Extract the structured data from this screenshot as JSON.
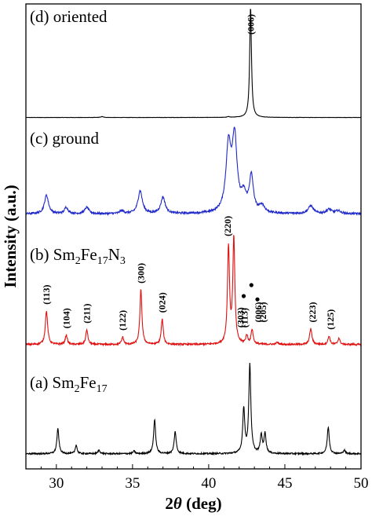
{
  "chart_data": {
    "type": "line",
    "xlabel": "2θ (deg)",
    "xlabel_parts": {
      "pre": "2",
      "theta": "θ",
      "post": " (deg)"
    },
    "ylabel": "Intensity (a.u.)",
    "xlim": [
      28,
      50
    ],
    "xticks": [
      "30",
      "35",
      "40",
      "45",
      "50"
    ],
    "grid": false,
    "panels": [
      {
        "label": "(d) oriented",
        "label_parts": [
          {
            "t": "(d) oriented",
            "s": "n"
          }
        ],
        "color": "#000000",
        "baseline": 0.3,
        "noise": 0.12,
        "peaks": [
          [
            42.75,
            100,
            0.07
          ],
          [
            33.0,
            0.8,
            0.1
          ],
          [
            41.3,
            0.6,
            0.1
          ]
        ],
        "peak_labels": [
          {
            "text": "(006)",
            "x": 42.75
          }
        ]
      },
      {
        "label": "(c) ground",
        "label_parts": [
          {
            "t": "(c) ground",
            "s": "n"
          }
        ],
        "color": "#1f28c8",
        "baseline": 4,
        "noise": 1.4,
        "peaks": [
          [
            29.35,
            26,
            0.16
          ],
          [
            30.65,
            9,
            0.14
          ],
          [
            32.0,
            9,
            0.16
          ],
          [
            34.3,
            4,
            0.16
          ],
          [
            35.5,
            32,
            0.17
          ],
          [
            37.0,
            23,
            0.17
          ],
          [
            41.3,
            90,
            0.2
          ],
          [
            41.7,
            100,
            0.19
          ],
          [
            42.3,
            22,
            0.2
          ],
          [
            42.8,
            50,
            0.16
          ],
          [
            43.5,
            10,
            0.2
          ],
          [
            46.7,
            11,
            0.2
          ],
          [
            47.9,
            6,
            0.2
          ],
          [
            48.5,
            4,
            0.2
          ]
        ],
        "peak_labels": []
      },
      {
        "label": "(b) Sm2Fe17N3",
        "label_parts": [
          {
            "t": "(b) Sm",
            "s": "n"
          },
          {
            "t": "2",
            "s": "sub"
          },
          {
            "t": "Fe",
            "s": "n"
          },
          {
            "t": "17",
            "s": "sub"
          },
          {
            "t": "N",
            "s": "n"
          },
          {
            "t": "3",
            "s": "sub"
          }
        ],
        "color": "#e01010",
        "baseline": 1,
        "noise": 0.8,
        "peaks": [
          [
            29.35,
            32,
            0.09
          ],
          [
            30.65,
            9,
            0.08
          ],
          [
            32.0,
            14,
            0.08
          ],
          [
            34.35,
            7,
            0.08
          ],
          [
            35.55,
            52,
            0.08
          ],
          [
            36.95,
            24,
            0.08
          ],
          [
            41.3,
            92,
            0.08
          ],
          [
            41.65,
            100,
            0.08
          ],
          [
            42.5,
            8,
            0.08
          ],
          [
            42.85,
            14,
            0.08
          ],
          [
            44.5,
            2,
            0.08
          ],
          [
            46.7,
            15,
            0.09
          ],
          [
            47.9,
            8,
            0.08
          ],
          [
            48.55,
            6,
            0.08
          ]
        ],
        "peak_labels": [
          {
            "text": "(113)",
            "x": 29.35
          },
          {
            "text": "(104)",
            "x": 30.65
          },
          {
            "text": "(211)",
            "x": 32.0
          },
          {
            "text": "(122)",
            "x": 34.35
          },
          {
            "text": "(300)",
            "x": 35.55
          },
          {
            "text": "(024)",
            "x": 36.95
          },
          {
            "text": "(220)",
            "x": 41.25
          },
          {
            "text": "(303)",
            "x": 42.1
          },
          {
            "text": "(113)",
            "x": 42.35
          },
          {
            "text": "(006)",
            "x": 43.25
          },
          {
            "text": "(205)",
            "x": 43.55
          },
          {
            "text": "(223)",
            "x": 46.8
          },
          {
            "text": "(125)",
            "x": 48.0
          }
        ],
        "markers": [
          {
            "x": 42.3,
            "y": 0.45
          },
          {
            "x": 42.8,
            "y": 0.55
          },
          {
            "x": 43.2,
            "y": 0.42
          }
        ]
      },
      {
        "label": "(a) Sm2Fe17",
        "label_parts": [
          {
            "t": "(a) Sm",
            "s": "n"
          },
          {
            "t": "2",
            "s": "sub"
          },
          {
            "t": "Fe",
            "s": "n"
          },
          {
            "t": "17",
            "s": "sub"
          }
        ],
        "color": "#000000",
        "baseline": 2,
        "noise": 0.8,
        "peaks": [
          [
            30.1,
            28,
            0.08
          ],
          [
            31.3,
            10,
            0.07
          ],
          [
            32.8,
            4,
            0.08
          ],
          [
            35.1,
            3,
            0.08
          ],
          [
            36.45,
            38,
            0.08
          ],
          [
            37.8,
            25,
            0.08
          ],
          [
            42.3,
            50,
            0.08
          ],
          [
            42.7,
            100,
            0.08
          ],
          [
            43.45,
            20,
            0.08
          ],
          [
            43.7,
            22,
            0.08
          ],
          [
            47.85,
            30,
            0.08
          ],
          [
            48.9,
            4,
            0.08
          ]
        ],
        "peak_labels": []
      }
    ]
  }
}
